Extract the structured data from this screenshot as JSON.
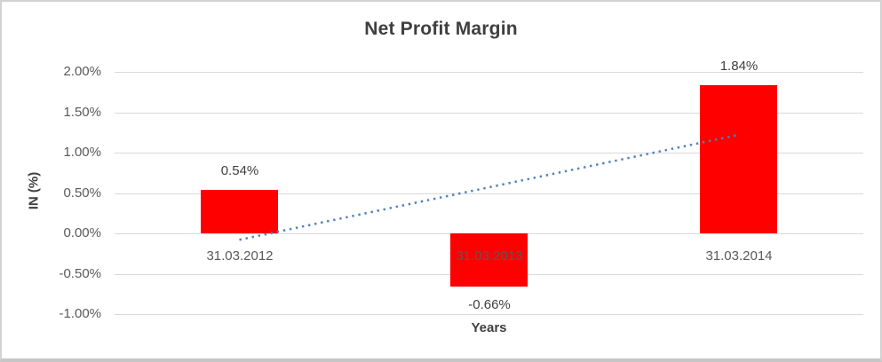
{
  "frame": {
    "background": "#ffffff",
    "border_color": "#d2d2d2"
  },
  "chart_data": {
    "type": "bar",
    "title": "Net Profit Margin",
    "xlabel": "Years",
    "ylabel": "IN (%)",
    "categories": [
      "31.03.2012",
      "31.03.2013",
      "31.03.2014"
    ],
    "series": [
      {
        "name": "Net Profit Margin",
        "values": [
          0.54,
          -0.66,
          1.84
        ],
        "data_labels": [
          "0.54%",
          "-0.66%",
          "1.84%"
        ],
        "color": "#ff0000"
      }
    ],
    "ylim": [
      -1.0,
      2.0
    ],
    "yticks": {
      "values": [
        2.0,
        1.5,
        1.0,
        0.5,
        0.0,
        -0.5,
        -1.0
      ],
      "labels": [
        "2.00%",
        "1.50%",
        "1.00%",
        "0.50%",
        "0.00%",
        "-0.50%",
        "-1.00%"
      ]
    },
    "grid": true,
    "legend": "none",
    "trendline": {
      "type": "linear",
      "style": "dotted",
      "color": "#4f81bd",
      "start": {
        "category_index": 0,
        "value": -0.08
      },
      "end": {
        "category_index": 2,
        "value": 1.22
      }
    }
  },
  "style": {
    "grid_color": "#d9d9d9",
    "tick_text_color": "#595959",
    "data_label_color": "#404040",
    "title_color": "#3f3f3f",
    "bar_color": "#ff0000",
    "trendline_color": "#4f81bd"
  }
}
